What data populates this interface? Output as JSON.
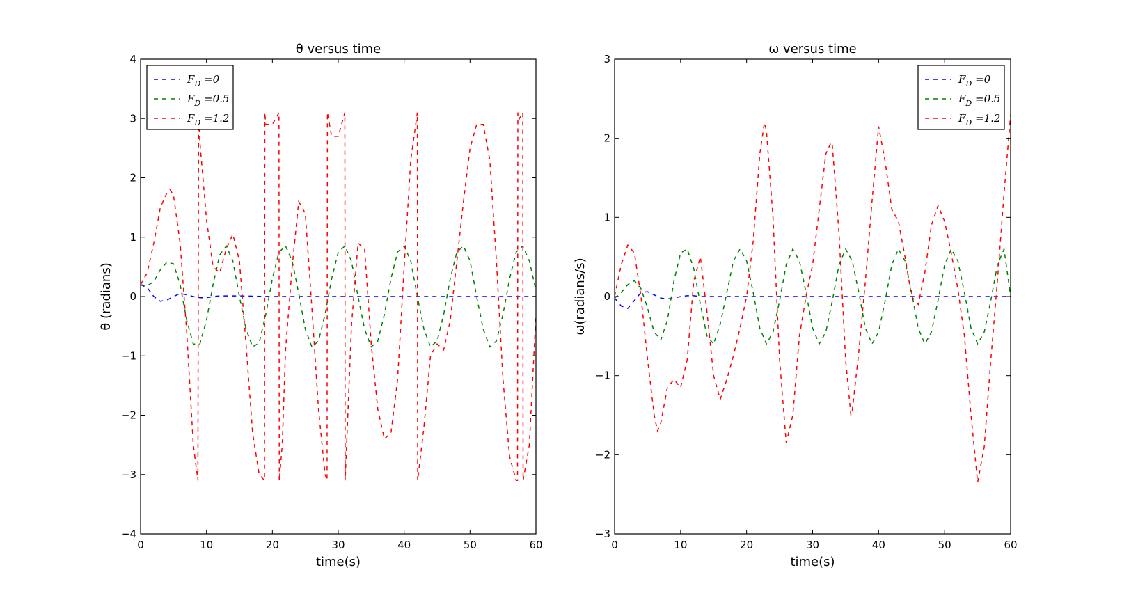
{
  "chart_data": [
    {
      "type": "line",
      "title": "θ versus time",
      "xlabel": "time(s)",
      "ylabel": "θ (radians)",
      "xlim": [
        0,
        60
      ],
      "ylim": [
        -4,
        4
      ],
      "xticks": [
        0,
        10,
        20,
        30,
        40,
        50,
        60
      ],
      "yticks": [
        -4,
        -3,
        -2,
        -1,
        0,
        1,
        2,
        3,
        4
      ],
      "xtick_labels": [
        "0",
        "10",
        "20",
        "30",
        "40",
        "50",
        "60"
      ],
      "ytick_labels": [
        "−4",
        "−3",
        "−2",
        "−1",
        "0",
        "1",
        "2",
        "3",
        "4"
      ],
      "legend_position": "top-left",
      "grid": false,
      "line_style": "dashed",
      "series": [
        {
          "name": "F_D =0",
          "legend": "FD =0",
          "color": "#0000ff",
          "x": [
            0,
            1,
            2,
            3,
            4,
            5,
            6,
            7,
            8,
            9,
            10,
            11,
            12,
            15,
            20,
            30,
            40,
            50,
            60
          ],
          "y": [
            0.2,
            0.15,
            0.0,
            -0.08,
            -0.06,
            0.0,
            0.05,
            0.03,
            0.0,
            -0.02,
            -0.02,
            0.0,
            0.01,
            0.01,
            0.0,
            0.0,
            0.0,
            0.0,
            0.0
          ]
        },
        {
          "name": "F_D =0.5",
          "legend": "FD =0.5",
          "color": "#008000",
          "x": [
            0,
            1,
            2,
            3,
            4,
            5,
            6,
            7,
            8,
            9,
            10,
            11,
            12,
            13,
            14,
            15,
            16,
            17,
            18,
            19,
            20,
            21,
            22,
            23,
            24,
            25,
            26,
            27,
            28,
            29,
            30,
            31,
            32,
            33,
            34,
            35,
            36,
            37,
            38,
            39,
            40,
            41,
            42,
            43,
            44,
            45,
            46,
            47,
            48,
            49,
            50,
            51,
            52,
            53,
            54,
            55,
            56,
            57,
            58,
            59,
            60
          ],
          "y": [
            0.2,
            0.18,
            0.25,
            0.45,
            0.58,
            0.55,
            0.2,
            -0.4,
            -0.8,
            -0.8,
            -0.4,
            0.2,
            0.7,
            0.85,
            0.6,
            0.0,
            -0.55,
            -0.85,
            -0.78,
            -0.3,
            0.3,
            0.75,
            0.85,
            0.6,
            0.05,
            -0.55,
            -0.85,
            -0.75,
            -0.3,
            0.3,
            0.75,
            0.85,
            0.6,
            0.0,
            -0.55,
            -0.85,
            -0.75,
            -0.3,
            0.3,
            0.75,
            0.85,
            0.6,
            0.0,
            -0.55,
            -0.85,
            -0.75,
            -0.3,
            0.3,
            0.75,
            0.85,
            0.6,
            0.0,
            -0.55,
            -0.85,
            -0.75,
            -0.3,
            0.3,
            0.75,
            0.85,
            0.6,
            0.1
          ]
        },
        {
          "name": "F_D =1.2",
          "legend": "FD =1.2",
          "color": "#ff0000",
          "x": [
            0,
            1,
            2,
            3,
            4,
            4.5,
            5,
            6,
            7,
            8,
            8.7,
            8.8,
            9,
            10,
            11,
            12,
            13,
            14,
            15,
            16,
            17,
            18,
            18.8,
            18.85,
            19,
            20,
            21,
            21.05,
            21.5,
            22,
            23,
            24,
            25,
            26,
            27,
            28,
            28.3,
            28.35,
            29,
            30,
            31,
            31.05,
            32,
            33,
            34,
            35,
            36,
            37,
            38,
            39,
            40,
            41,
            42,
            42.05,
            43,
            44,
            45,
            46,
            47,
            48,
            49,
            50,
            51,
            52,
            53,
            54,
            55,
            56,
            57,
            57.2,
            57.25,
            57.5,
            58,
            58.05,
            59,
            60
          ],
          "y": [
            0.2,
            0.4,
            0.9,
            1.5,
            1.75,
            1.8,
            1.7,
            0.9,
            -0.6,
            -2.5,
            -3.1,
            3.1,
            2.6,
            1.3,
            0.5,
            0.4,
            0.8,
            1.05,
            0.6,
            -0.8,
            -2.3,
            -3.0,
            -3.1,
            3.1,
            2.9,
            2.9,
            3.1,
            -3.1,
            -2.5,
            -0.9,
            0.5,
            1.6,
            1.4,
            -0.2,
            -1.9,
            -3.0,
            -3.1,
            3.1,
            2.7,
            2.7,
            3.1,
            -3.1,
            -0.5,
            0.9,
            0.8,
            -0.8,
            -1.9,
            -2.4,
            -2.3,
            -1.4,
            0.5,
            2.3,
            3.1,
            -3.1,
            -2.2,
            -1.0,
            -0.8,
            -0.9,
            -0.4,
            0.6,
            1.6,
            2.5,
            2.9,
            2.9,
            2.3,
            0.6,
            -1.4,
            -2.7,
            -3.1,
            -3.1,
            3.1,
            3.0,
            3.1,
            -3.1,
            -2.5,
            -0.3
          ]
        }
      ]
    },
    {
      "type": "line",
      "title": "ω versus time",
      "xlabel": "time(s)",
      "ylabel": "ω(radians/s)",
      "xlim": [
        0,
        60
      ],
      "ylim": [
        -3,
        3
      ],
      "xticks": [
        0,
        10,
        20,
        30,
        40,
        50,
        60
      ],
      "yticks": [
        -3,
        -2,
        -1,
        0,
        1,
        2,
        3
      ],
      "xtick_labels": [
        "0",
        "10",
        "20",
        "30",
        "40",
        "50",
        "60"
      ],
      "ytick_labels": [
        "−3",
        "−2",
        "−1",
        "0",
        "1",
        "2",
        "3"
      ],
      "legend_position": "top-right",
      "grid": false,
      "line_style": "dashed",
      "series": [
        {
          "name": "F_D =0",
          "legend": "FD =0",
          "color": "#0000ff",
          "x": [
            0,
            1,
            2,
            3,
            4,
            5,
            6,
            7,
            8,
            9,
            10,
            11,
            12,
            13,
            15,
            20,
            30,
            40,
            50,
            60
          ],
          "y": [
            -0.02,
            -0.12,
            -0.15,
            -0.05,
            0.05,
            0.06,
            0.02,
            -0.02,
            -0.03,
            -0.02,
            0.0,
            0.01,
            0.01,
            0.0,
            0.0,
            0.0,
            0.0,
            0.0,
            0.0,
            0.0
          ]
        },
        {
          "name": "F_D =0.5",
          "legend": "FD =0.5",
          "color": "#008000",
          "x": [
            0,
            1,
            2,
            3,
            4,
            5,
            6,
            7,
            8,
            9,
            10,
            11,
            12,
            13,
            14,
            15,
            16,
            17,
            18,
            19,
            20,
            21,
            22,
            23,
            24,
            25,
            26,
            27,
            28,
            29,
            30,
            31,
            32,
            33,
            34,
            35,
            36,
            37,
            38,
            39,
            40,
            41,
            42,
            43,
            44,
            45,
            46,
            47,
            48,
            49,
            50,
            51,
            52,
            53,
            54,
            55,
            56,
            57,
            58,
            59,
            60
          ],
          "y": [
            -0.02,
            0.05,
            0.15,
            0.2,
            0.1,
            -0.15,
            -0.45,
            -0.55,
            -0.3,
            0.2,
            0.55,
            0.6,
            0.35,
            -0.1,
            -0.5,
            -0.6,
            -0.35,
            0.05,
            0.45,
            0.6,
            0.45,
            0.05,
            -0.4,
            -0.6,
            -0.45,
            -0.05,
            0.4,
            0.6,
            0.45,
            0.05,
            -0.4,
            -0.6,
            -0.45,
            -0.05,
            0.4,
            0.6,
            0.45,
            0.05,
            -0.4,
            -0.6,
            -0.45,
            -0.05,
            0.4,
            0.6,
            0.45,
            0.05,
            -0.4,
            -0.6,
            -0.45,
            -0.05,
            0.4,
            0.6,
            0.45,
            0.05,
            -0.4,
            -0.6,
            -0.45,
            -0.05,
            0.4,
            0.6,
            0.0
          ]
        },
        {
          "name": "F_D =1.2",
          "legend": "FD =1.2",
          "color": "#ff0000",
          "x": [
            0,
            1,
            2,
            3,
            4,
            5,
            6,
            6.5,
            7,
            8,
            9,
            10,
            11,
            12,
            13,
            14,
            15,
            16,
            17,
            18,
            19,
            20,
            21,
            22,
            22.7,
            23,
            24,
            25,
            26,
            27,
            28,
            29,
            30,
            31,
            32,
            32.8,
            33,
            34,
            35,
            35.8,
            36,
            37,
            38,
            39,
            40,
            41,
            42,
            43,
            44,
            45,
            46,
            47,
            48,
            49,
            50,
            51,
            52,
            53,
            54,
            55,
            56,
            57,
            58,
            59,
            60
          ],
          "y": [
            0.0,
            0.4,
            0.65,
            0.55,
            0.0,
            -0.8,
            -1.5,
            -1.7,
            -1.6,
            -1.15,
            -1.05,
            -1.15,
            -0.8,
            0.2,
            0.5,
            -0.2,
            -1.0,
            -1.3,
            -1.05,
            -0.75,
            -0.4,
            0.0,
            0.7,
            1.8,
            2.2,
            2.1,
            1.0,
            -0.8,
            -1.85,
            -1.5,
            -0.5,
            0.0,
            0.4,
            1.1,
            1.8,
            1.95,
            1.9,
            0.8,
            -0.8,
            -1.5,
            -1.45,
            -0.7,
            0.2,
            1.2,
            2.15,
            1.7,
            1.1,
            0.95,
            0.5,
            0.0,
            -0.1,
            0.3,
            0.9,
            1.15,
            0.95,
            0.55,
            0.1,
            -0.5,
            -1.5,
            -2.35,
            -1.9,
            -0.8,
            0.2,
            1.3,
            2.3
          ]
        }
      ]
    }
  ]
}
